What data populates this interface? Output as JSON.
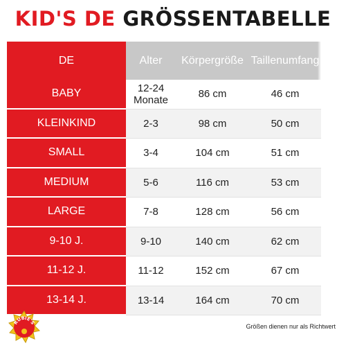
{
  "title": {
    "part1": "KID'S DE",
    "part2": "GRÖSSENTABELLE"
  },
  "table": {
    "headers": [
      "DE",
      "Alter",
      "Körpergröße",
      "Taillenumfang"
    ],
    "rows": [
      {
        "label": "BABY",
        "age_line1": "12-24",
        "age_line2": "Monate",
        "height": "86 cm",
        "waist": "46 cm"
      },
      {
        "label": "KLEINKIND",
        "age_line1": "2-3",
        "age_line2": "",
        "height": "98 cm",
        "waist": "50 cm"
      },
      {
        "label": "SMALL",
        "age_line1": "3-4",
        "age_line2": "",
        "height": "104 cm",
        "waist": "51 cm"
      },
      {
        "label": "MEDIUM",
        "age_line1": "5-6",
        "age_line2": "",
        "height": "116 cm",
        "waist": "53 cm"
      },
      {
        "label": "LARGE",
        "age_line1": "7-8",
        "age_line2": "",
        "height": "128 cm",
        "waist": "56 cm"
      },
      {
        "label": "9-10  J.",
        "age_line1": "9-10",
        "age_line2": "",
        "height": "140 cm",
        "waist": "62 cm"
      },
      {
        "label": "11-12  J.",
        "age_line1": "11-12",
        "age_line2": "",
        "height": "152 cm",
        "waist": "67 cm"
      },
      {
        "label": "13-14  J.",
        "age_line1": "13-14",
        "age_line2": "",
        "height": "164 cm",
        "waist": "70 cm"
      }
    ]
  },
  "logo": {
    "text": "RUBIE'S",
    "icon": "rubies-logo-icon"
  },
  "footnote": "Größen dienen nur als Richtwert",
  "colors": {
    "accent": "#e11b22",
    "header_gray": "#c8c8c8",
    "stripe": "#f2f2f2"
  }
}
